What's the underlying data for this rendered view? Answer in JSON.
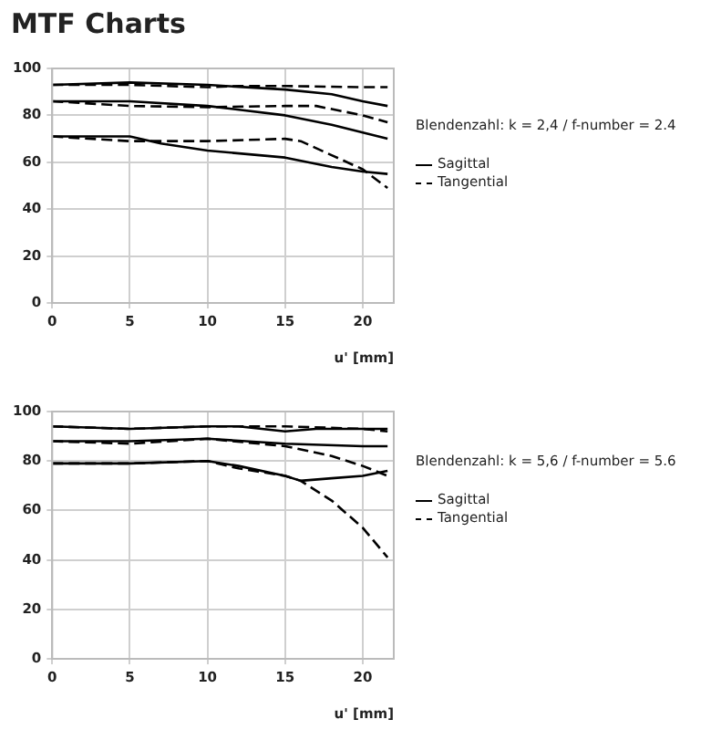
{
  "chart_data": [
    {
      "type": "line",
      "title": "MTF Charts",
      "xlabel": "u' [mm]",
      "xlim": [
        0,
        22
      ],
      "xticks": [
        0,
        5,
        10,
        15,
        20
      ],
      "ylim": [
        0,
        100
      ],
      "yticks": [
        0,
        20,
        40,
        60,
        80,
        100
      ],
      "grid": true,
      "legend": "right",
      "marker": "none",
      "annotations": [
        "Blendenzahl: k = 2,4 / f-number = 2.4"
      ],
      "series": [
        {
          "name": "Sagittal",
          "color": "#000000",
          "line_style": "solid",
          "x": [
            0,
            5,
            10,
            15,
            18,
            20,
            21.6
          ],
          "values": [
            93,
            94,
            93,
            91,
            89,
            86,
            84
          ]
        },
        {
          "name": "Tangential",
          "color": "#000000",
          "line_style": "dashed",
          "x": [
            0,
            5,
            10,
            12,
            15,
            20,
            21.6
          ],
          "values": [
            93,
            93,
            92,
            92.5,
            92.5,
            92,
            92
          ]
        },
        {
          "color": "#000000",
          "line_style": "solid",
          "x": [
            0,
            5,
            10,
            15,
            18,
            21.6
          ],
          "values": [
            86,
            86,
            84,
            80,
            76,
            70
          ]
        },
        {
          "color": "#000000",
          "line_style": "dashed",
          "x": [
            0,
            5,
            10,
            15,
            17,
            20,
            21.6
          ],
          "values": [
            86,
            84,
            83.5,
            84,
            84,
            80,
            77
          ]
        },
        {
          "color": "#000000",
          "line_style": "solid",
          "x": [
            0,
            5,
            7,
            10,
            15,
            18,
            20,
            21.6
          ],
          "values": [
            71,
            71,
            68,
            65,
            62,
            58,
            56,
            55
          ]
        },
        {
          "color": "#000000",
          "line_style": "dashed",
          "x": [
            0,
            5,
            10,
            15,
            16,
            18,
            20,
            21.6
          ],
          "values": [
            71,
            69,
            69,
            70,
            69,
            63,
            57,
            49
          ]
        }
      ]
    },
    {
      "type": "line",
      "xlabel": "u' [mm]",
      "xlim": [
        0,
        22
      ],
      "xticks": [
        0,
        5,
        10,
        15,
        20
      ],
      "ylim": [
        0,
        100
      ],
      "yticks": [
        0,
        20,
        40,
        60,
        80,
        100
      ],
      "grid": true,
      "legend": "right",
      "marker": "none",
      "annotations": [
        "Blendenzahl: k = 5,6 / f-number = 5.6"
      ],
      "series": [
        {
          "name": "Sagittal",
          "color": "#000000",
          "line_style": "solid",
          "x": [
            0,
            5,
            10,
            12,
            15,
            17,
            20,
            21.6
          ],
          "values": [
            94,
            93,
            94,
            94,
            92,
            93,
            93,
            93
          ]
        },
        {
          "name": "Tangential",
          "color": "#000000",
          "line_style": "dashed",
          "x": [
            0,
            5,
            10,
            15,
            20,
            21.6
          ],
          "values": [
            94,
            93,
            94,
            94,
            93,
            92
          ]
        },
        {
          "color": "#000000",
          "line_style": "solid",
          "x": [
            0,
            5,
            10,
            15,
            20,
            21.6
          ],
          "values": [
            88,
            88,
            89,
            87,
            86,
            86
          ]
        },
        {
          "color": "#000000",
          "line_style": "dashed",
          "x": [
            0,
            5,
            10,
            15,
            18,
            20,
            21.6
          ],
          "values": [
            88,
            87,
            89,
            86,
            82,
            78,
            74
          ]
        },
        {
          "color": "#000000",
          "line_style": "solid",
          "x": [
            0,
            5,
            10,
            12,
            15,
            16,
            18,
            20,
            21.6
          ],
          "values": [
            79,
            79,
            80,
            78,
            74,
            72,
            73,
            74,
            76
          ]
        },
        {
          "color": "#000000",
          "line_style": "dashed",
          "x": [
            0,
            5,
            10,
            12,
            15,
            16,
            18,
            20,
            21.6
          ],
          "values": [
            79,
            79,
            80,
            77,
            74,
            72,
            64,
            53,
            41
          ]
        }
      ]
    }
  ]
}
